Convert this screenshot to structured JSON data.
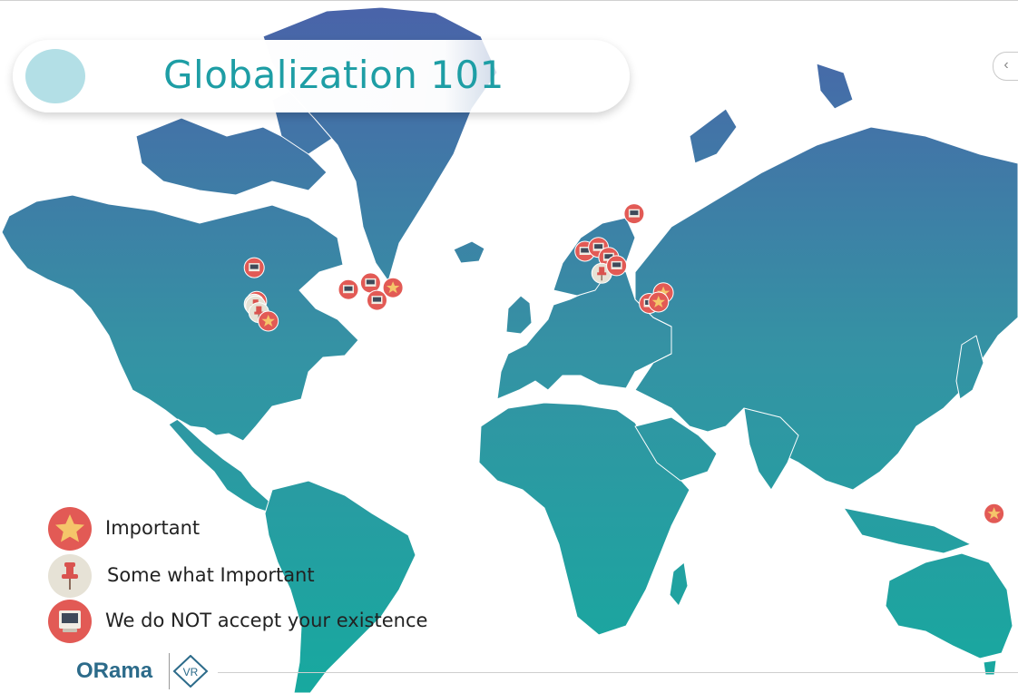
{
  "title": "Globalization 101",
  "legend": [
    {
      "type": "important",
      "label": "Important"
    },
    {
      "type": "somewhat",
      "label": "Some what Important"
    },
    {
      "type": "not_accepted",
      "label": "We do NOT accept your existence"
    }
  ],
  "logo": {
    "text": "ORama",
    "badge": "VR"
  },
  "icons": {
    "important": "star-icon",
    "somewhat": "pushpin-icon",
    "not_accepted": "monitor-icon",
    "collapse": "chevron-left-icon"
  },
  "colors": {
    "ocean": "#ffffff",
    "land_top": "#4e6aa8",
    "land_bottom": "#19a89e",
    "important": "#e25a55",
    "star": "#f5c56a",
    "somewhat": "#e6e2d6",
    "pin": "#d9534f",
    "title": "#1e9ea5"
  },
  "markers": [
    {
      "type": "not_accepted",
      "lon": -122.4,
      "lat": 47.6
    },
    {
      "type": "not_accepted",
      "lon": -121.5,
      "lat": 38.6
    },
    {
      "type": "somewhat",
      "lon": -122.4,
      "lat": 37.8
    },
    {
      "type": "somewhat",
      "lon": -121.9,
      "lat": 37.3
    },
    {
      "type": "somewhat",
      "lon": -120.7,
      "lat": 35.3
    },
    {
      "type": "important",
      "lon": -117.2,
      "lat": 32.7
    },
    {
      "type": "not_accepted",
      "lon": -87.6,
      "lat": 41.9
    },
    {
      "type": "not_accepted",
      "lon": -79.4,
      "lat": 43.7
    },
    {
      "type": "important",
      "lon": -71.1,
      "lat": 42.4
    },
    {
      "type": "not_accepted",
      "lon": -77.0,
      "lat": 38.9
    },
    {
      "type": "not_accepted",
      "lon": -0.1,
      "lat": 51.5
    },
    {
      "type": "not_accepted",
      "lon": 4.9,
      "lat": 52.4
    },
    {
      "type": "not_accepted",
      "lon": 8.7,
      "lat": 50.1
    },
    {
      "type": "not_accepted",
      "lon": 18.1,
      "lat": 59.3
    },
    {
      "type": "somewhat",
      "lon": 6.1,
      "lat": 46.2
    },
    {
      "type": "not_accepted",
      "lon": 11.6,
      "lat": 48.1
    },
    {
      "type": "important",
      "lon": 28.9,
      "lat": 41.0
    },
    {
      "type": "not_accepted",
      "lon": 23.7,
      "lat": 38.0
    },
    {
      "type": "important",
      "lon": 27.1,
      "lat": 38.4
    },
    {
      "type": "important",
      "lon": 151.2,
      "lat": -33.9
    }
  ]
}
